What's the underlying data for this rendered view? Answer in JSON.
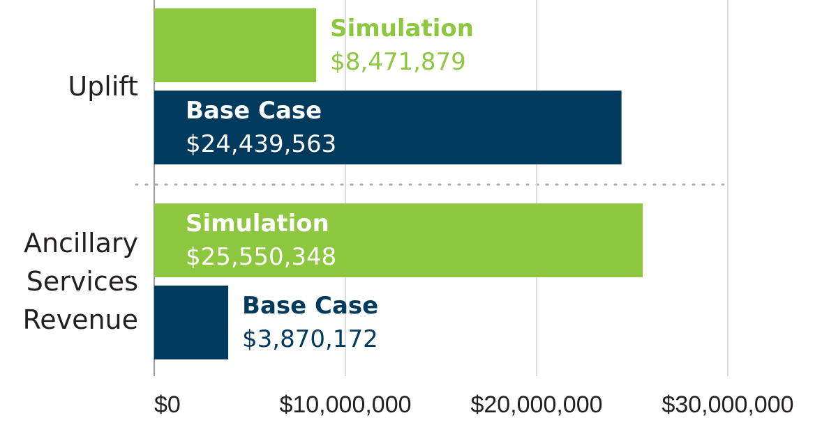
{
  "chart_data": {
    "type": "barh",
    "categories": [
      "Uplift",
      "Ancillary Services Revenue"
    ],
    "series": [
      {
        "name": "Simulation",
        "color": "#8dc63f",
        "values": [
          8471879,
          25550348
        ],
        "value_labels": [
          "$8,471,879",
          "$25,550,348"
        ]
      },
      {
        "name": "Base Case",
        "color": "#003a5d",
        "values": [
          24439563,
          3870172
        ],
        "value_labels": [
          "$24,439,563",
          "$3,870,172"
        ]
      }
    ],
    "xlim": [
      0,
      30000000
    ],
    "xticks": [
      {
        "value": 0,
        "label": "$0"
      },
      {
        "value": 10000000,
        "label": "$10,000,000"
      },
      {
        "value": 20000000,
        "label": "$20,000,000"
      },
      {
        "value": 30000000,
        "label": "$30,000,000"
      }
    ],
    "grid": true
  }
}
